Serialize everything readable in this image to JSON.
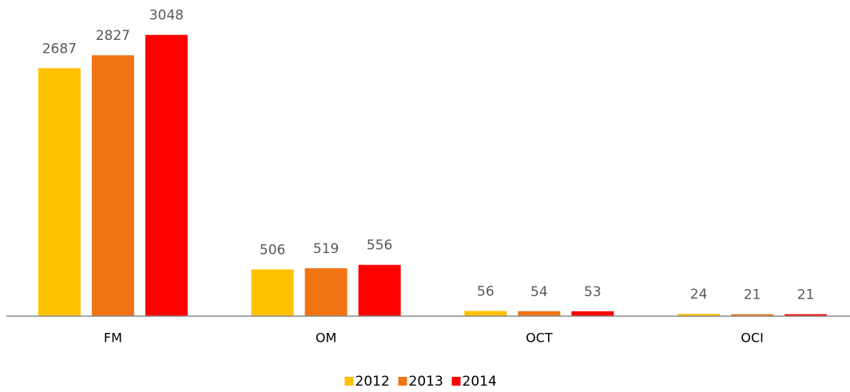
{
  "chart_data": {
    "type": "bar",
    "categories": [
      "FM",
      "OM",
      "OCT",
      "OCI"
    ],
    "series": [
      {
        "name": "2012",
        "color": "#ffc000",
        "values": [
          2687,
          506,
          56,
          24
        ]
      },
      {
        "name": "2013",
        "color": "#f07414",
        "values": [
          2827,
          519,
          54,
          21
        ]
      },
      {
        "name": "2014",
        "color": "#ff0000",
        "values": [
          3048,
          556,
          53,
          21
        ]
      }
    ],
    "ylim": [
      0,
      3400
    ],
    "legend": "bottom"
  }
}
